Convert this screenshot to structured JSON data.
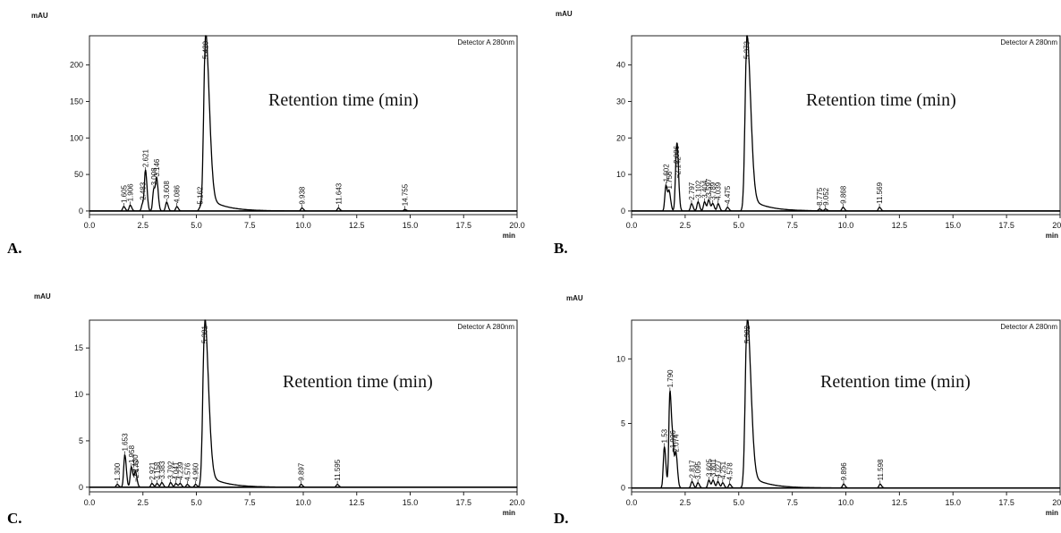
{
  "chart_data": [
    {
      "type": "line",
      "panel": "A.",
      "title": "Retention time (min)",
      "ylabel": "mAU",
      "xlabel": "min",
      "detector": "Detector A 280nm",
      "xlim": [
        0,
        20
      ],
      "ylim": [
        -5,
        240
      ],
      "x_ticks": [
        0,
        2.5,
        5,
        7.5,
        10,
        12.5,
        15,
        17.5,
        20
      ],
      "x_tick_labels": [
        "0.0",
        "2.5",
        "5.0",
        "7.5",
        "10.0",
        "12.5",
        "15.0",
        "17.5",
        "20.0"
      ],
      "y_ticks": [
        0,
        50,
        100,
        150,
        200
      ],
      "y_tick_labels": [
        "0",
        "50",
        "100",
        "150",
        "200"
      ],
      "peaks": [
        {
          "x": 1.605,
          "y": 6,
          "label": "1.605"
        },
        {
          "x": 1.906,
          "y": 8,
          "label": "1.906"
        },
        {
          "x": 2.483,
          "y": 10,
          "label": "2.483"
        },
        {
          "x": 2.621,
          "y": 55,
          "label": "2.621"
        },
        {
          "x": 3.008,
          "y": 30,
          "label": "3.008"
        },
        {
          "x": 3.146,
          "y": 42,
          "label": "3.146"
        },
        {
          "x": 3.608,
          "y": 12,
          "label": "3.608"
        },
        {
          "x": 4.086,
          "y": 6,
          "label": "4.086"
        },
        {
          "x": 5.162,
          "y": 4,
          "label": "5.162"
        },
        {
          "x": 5.42,
          "y": 228,
          "label": "5.420"
        },
        {
          "x": 9.938,
          "y": 4,
          "label": "9.938"
        },
        {
          "x": 11.643,
          "y": 4,
          "label": "11.643"
        },
        {
          "x": 14.755,
          "y": 2,
          "label": "14.755"
        }
      ]
    },
    {
      "type": "line",
      "panel": "B.",
      "title": "Retention time (min)",
      "ylabel": "mAU",
      "xlabel": "min",
      "detector": "Detector A 280nm",
      "xlim": [
        0,
        20
      ],
      "ylim": [
        -1,
        48
      ],
      "x_ticks": [
        0,
        2.5,
        5,
        7.5,
        10,
        12.5,
        15,
        17.5,
        20
      ],
      "x_tick_labels": [
        "0.0",
        "2.5",
        "5.0",
        "7.5",
        "10.0",
        "12.5",
        "15.0",
        "17.5",
        "20.0"
      ],
      "y_ticks": [
        0,
        10,
        20,
        30,
        40
      ],
      "y_tick_labels": [
        "0",
        "10",
        "20",
        "30",
        "40"
      ],
      "peaks": [
        {
          "x": 1.602,
          "y": 7,
          "label": "1.602"
        },
        {
          "x": 1.756,
          "y": 5,
          "label": "1.756"
        },
        {
          "x": 2.086,
          "y": 12,
          "label": "2.086"
        },
        {
          "x": 2.142,
          "y": 9,
          "label": "2.142"
        },
        {
          "x": 2.797,
          "y": 2,
          "label": "2.797"
        },
        {
          "x": 3.102,
          "y": 2.5,
          "label": "3.102"
        },
        {
          "x": 3.404,
          "y": 2.5,
          "label": "3.404"
        },
        {
          "x": 3.597,
          "y": 3,
          "label": "3.597"
        },
        {
          "x": 3.789,
          "y": 2,
          "label": "3.789"
        },
        {
          "x": 4.039,
          "y": 2,
          "label": "4.039"
        },
        {
          "x": 4.475,
          "y": 1,
          "label": "4.475"
        },
        {
          "x": 5.373,
          "y": 45,
          "label": "5.373"
        },
        {
          "x": 8.775,
          "y": 0.5,
          "label": "8.775"
        },
        {
          "x": 9.052,
          "y": 0.5,
          "label": "9.052"
        },
        {
          "x": 9.868,
          "y": 1,
          "label": "9.868"
        },
        {
          "x": 11.569,
          "y": 1,
          "label": "11.569"
        }
      ]
    },
    {
      "type": "line",
      "panel": "C.",
      "title": "Retention time (min)",
      "ylabel": "mAU",
      "xlabel": "min",
      "detector": "Detector A 280nm",
      "xlim": [
        0,
        20
      ],
      "ylim": [
        -0.5,
        18
      ],
      "x_ticks": [
        0,
        2.5,
        5,
        7.5,
        10,
        12.5,
        15,
        17.5,
        20
      ],
      "x_tick_labels": [
        "0.0",
        "2.5",
        "5.0",
        "7.5",
        "10.0",
        "12.5",
        "15.0",
        "17.5",
        "20.0"
      ],
      "y_ticks": [
        0,
        5,
        10,
        15
      ],
      "y_tick_labels": [
        "0",
        "5",
        "10",
        "15"
      ],
      "peaks": [
        {
          "x": 1.3,
          "y": 0.3,
          "label": "1.300"
        },
        {
          "x": 1.653,
          "y": 3.5,
          "label": "1.653"
        },
        {
          "x": 1.958,
          "y": 2.2,
          "label": "1.958"
        },
        {
          "x": 2.13,
          "y": 1.2,
          "label": "2.130"
        },
        {
          "x": 2.175,
          "y": 0.6,
          "label": "2.175"
        },
        {
          "x": 2.921,
          "y": 0.4,
          "label": "2.921"
        },
        {
          "x": 3.158,
          "y": 0.4,
          "label": "3.158"
        },
        {
          "x": 3.383,
          "y": 0.5,
          "label": "3.383"
        },
        {
          "x": 3.792,
          "y": 0.5,
          "label": "3.792"
        },
        {
          "x": 4.041,
          "y": 0.4,
          "label": "4.041"
        },
        {
          "x": 4.239,
          "y": 0.4,
          "label": "4.239"
        },
        {
          "x": 4.576,
          "y": 0.3,
          "label": "4.576"
        },
        {
          "x": 4.96,
          "y": 0.3,
          "label": "4.960"
        },
        {
          "x": 5.381,
          "y": 17,
          "label": "5.381"
        },
        {
          "x": 9.897,
          "y": 0.3,
          "label": "9.897"
        },
        {
          "x": 11.595,
          "y": 0.3,
          "label": "11.595"
        }
      ]
    },
    {
      "type": "line",
      "panel": "D.",
      "title": "Retention time (min)",
      "ylabel": "mAU",
      "xlabel": "min",
      "detector": "Detector A 280nm",
      "xlim": [
        0,
        20
      ],
      "ylim": [
        -0.3,
        13
      ],
      "x_ticks": [
        0,
        2.5,
        5,
        7.5,
        10,
        12.5,
        15,
        17.5,
        20
      ],
      "x_tick_labels": [
        "0.0",
        "2.5",
        "5.0",
        "7.5",
        "10.0",
        "12.5",
        "15.0",
        "17.5",
        "20.0"
      ],
      "y_ticks": [
        0,
        5,
        10
      ],
      "y_tick_labels": [
        "0",
        "5",
        "10"
      ],
      "peaks": [
        {
          "x": 1.53,
          "y": 3.2,
          "label": "1.53"
        },
        {
          "x": 1.79,
          "y": 7.5,
          "label": "1.790"
        },
        {
          "x": 1.926,
          "y": 2.8,
          "label": "1.926"
        },
        {
          "x": 2.074,
          "y": 2.5,
          "label": "2.074"
        },
        {
          "x": 2.817,
          "y": 0.5,
          "label": "2.817"
        },
        {
          "x": 3.095,
          "y": 0.4,
          "label": "3.095"
        },
        {
          "x": 3.605,
          "y": 0.6,
          "label": "3.605"
        },
        {
          "x": 3.801,
          "y": 0.6,
          "label": "3.801"
        },
        {
          "x": 4.027,
          "y": 0.5,
          "label": "4.027"
        },
        {
          "x": 4.251,
          "y": 0.4,
          "label": "4.251"
        },
        {
          "x": 4.578,
          "y": 0.3,
          "label": "4.578"
        },
        {
          "x": 5.382,
          "y": 12.5,
          "label": "5.382"
        },
        {
          "x": 9.896,
          "y": 0.3,
          "label": "9.896"
        },
        {
          "x": 11.598,
          "y": 0.3,
          "label": "11.598"
        }
      ]
    }
  ]
}
